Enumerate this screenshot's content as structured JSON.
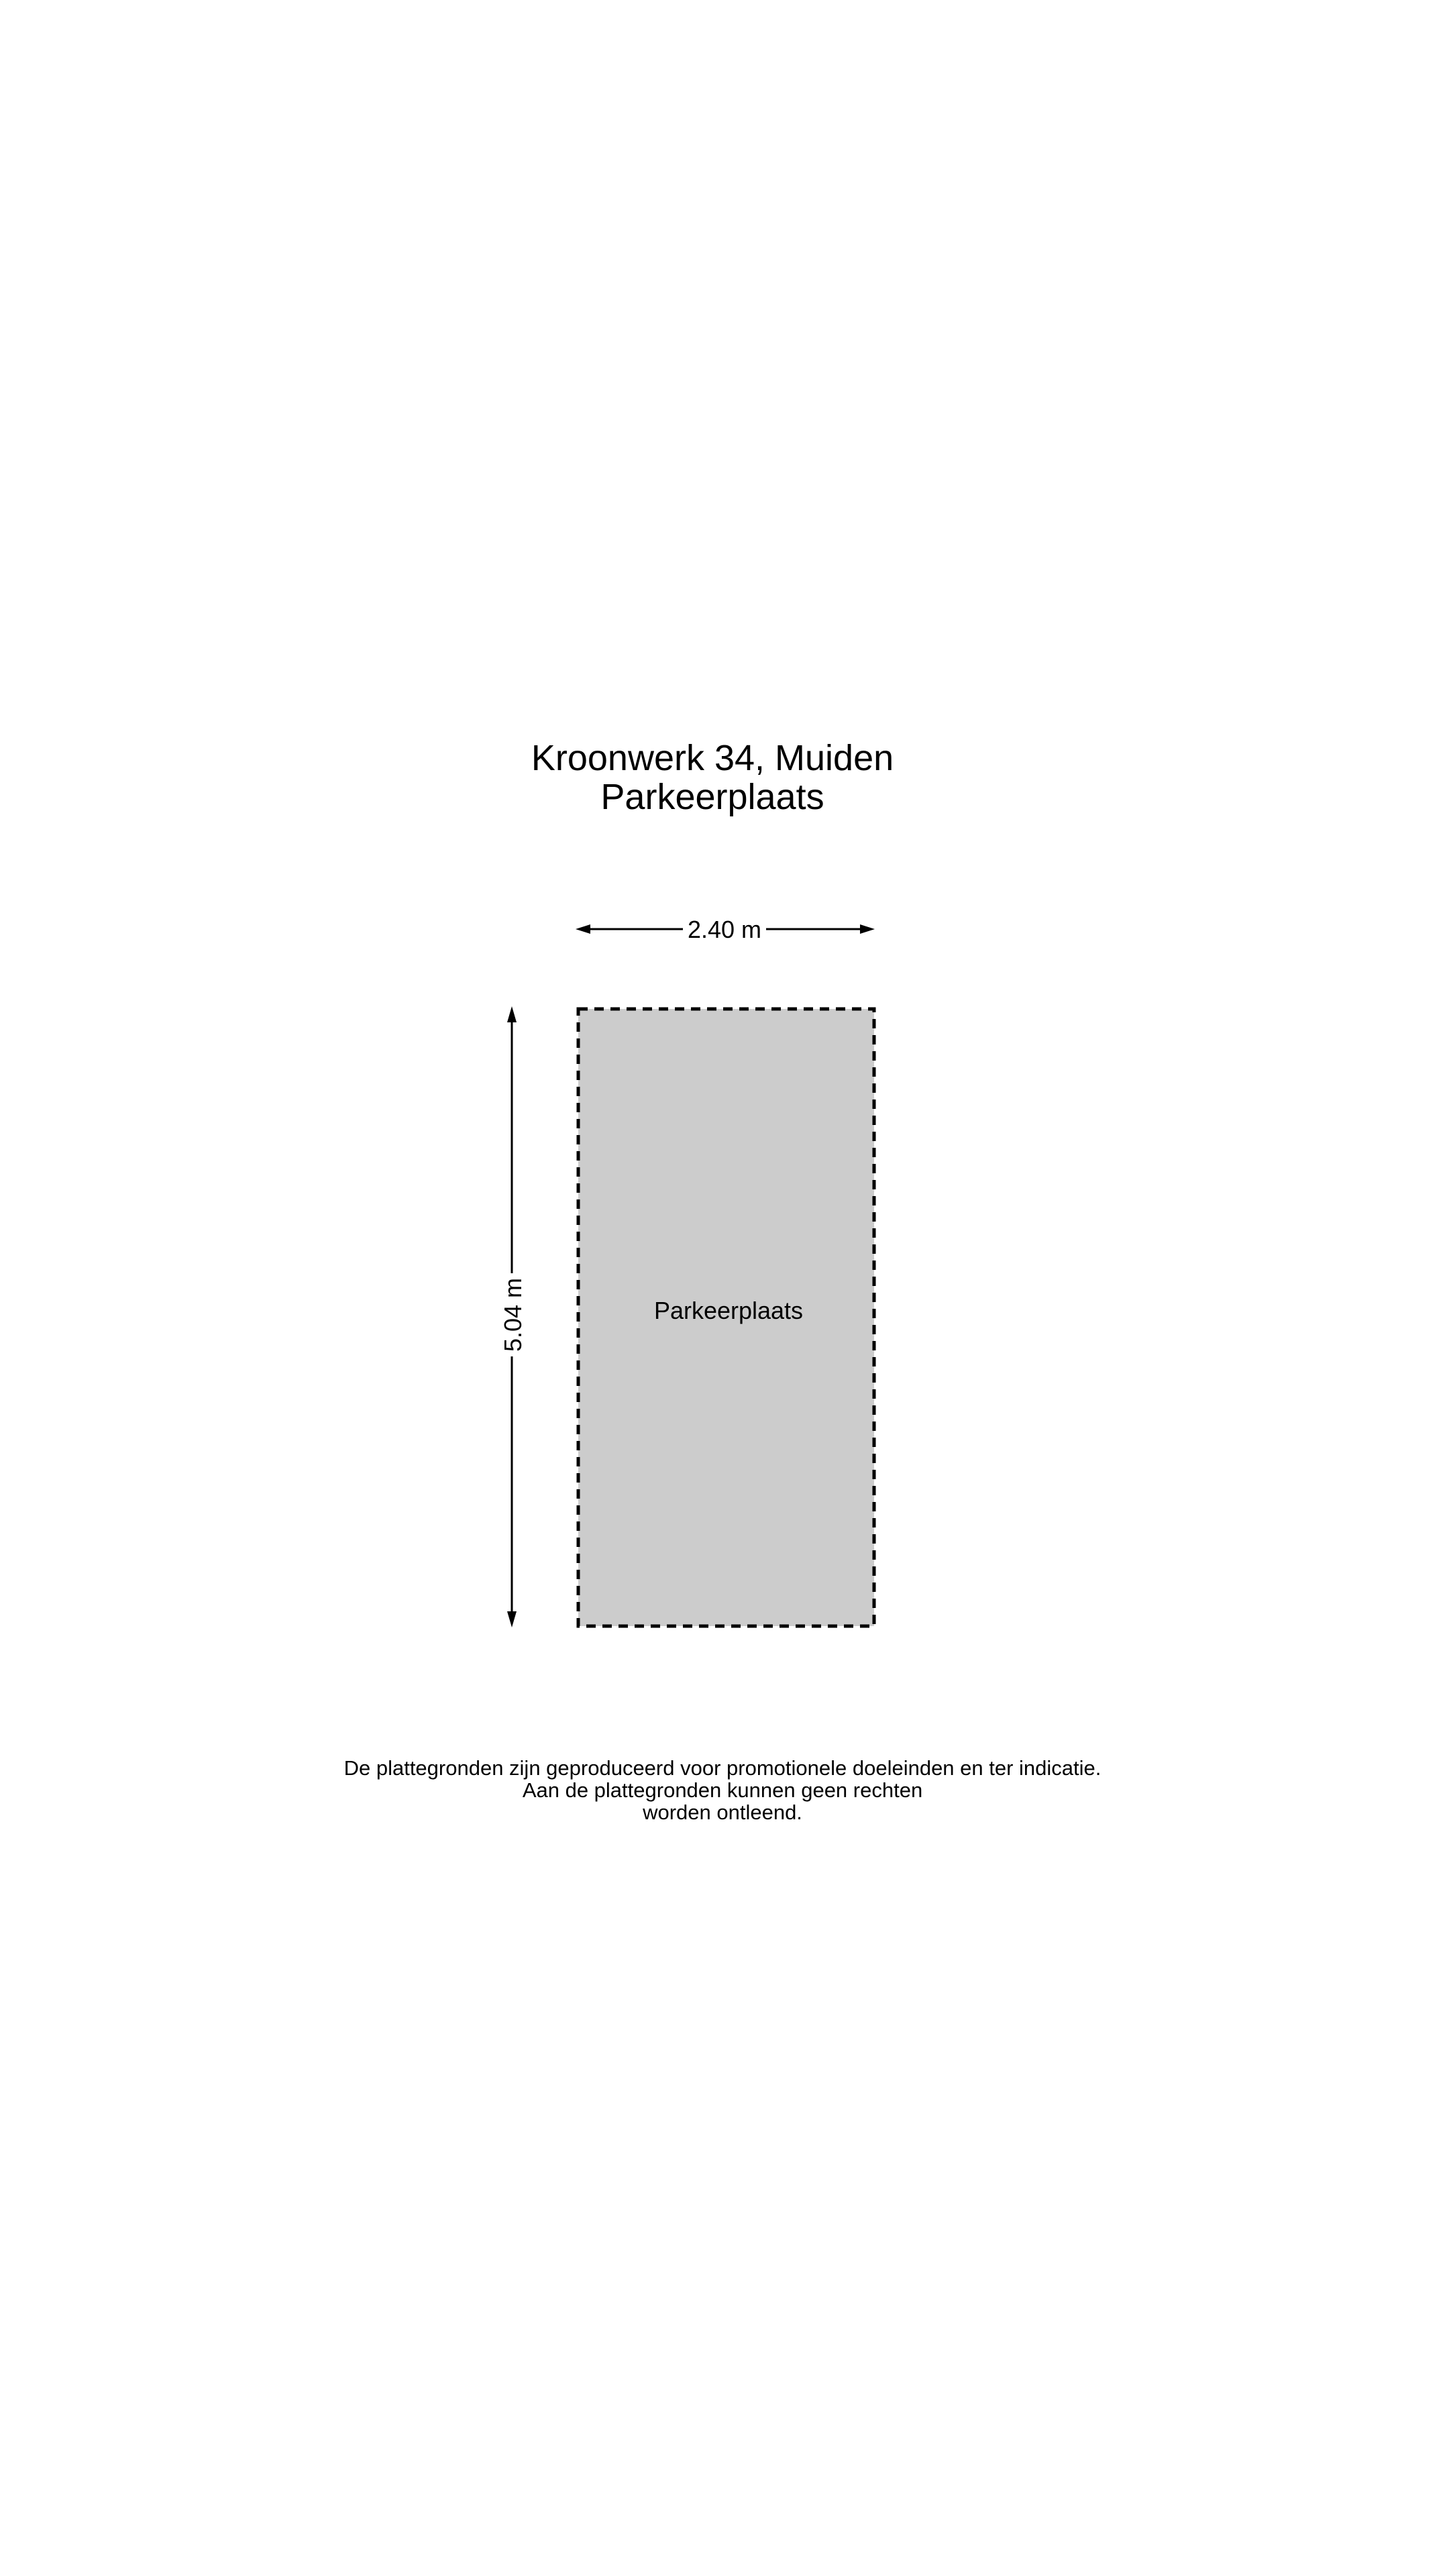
{
  "header": {
    "address": "Kroonwerk 34, Muiden",
    "subtitle": "Parkeerplaats"
  },
  "floorplan": {
    "room": {
      "label": "Parkeerplaats",
      "fill": "#cccccc"
    },
    "width_label": "2.40 m",
    "depth_label": "5.04 m"
  },
  "disclaimer": {
    "line1": "De plattegronden zijn geproduceerd voor promotionele doeleinden en ter indicatie.",
    "line2": "Aan de plattegronden kunnen geen rechten",
    "line3": "worden ontleend."
  }
}
